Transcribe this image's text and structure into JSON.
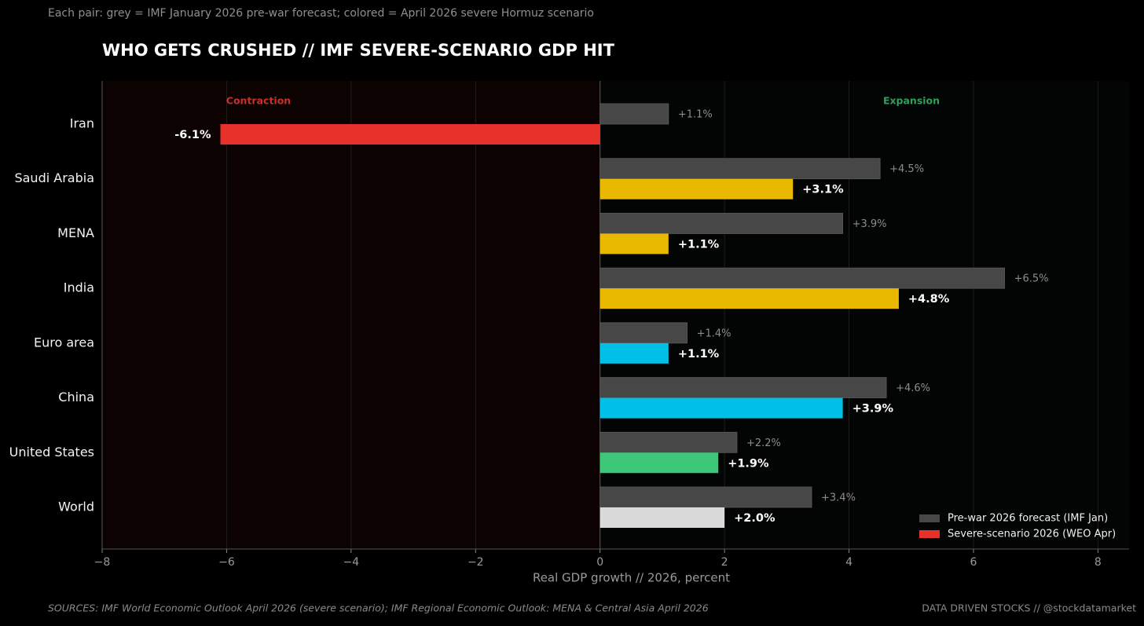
{
  "chart_data": {
    "type": "hbar",
    "subtitle": "Each pair: grey = IMF January 2026 pre-war forecast;  colored = April 2026 severe Hormuz scenario",
    "title": "WHO GETS CRUSHED  //  IMF SEVERE-SCENARIO GDP HIT",
    "x_label": "Real GDP growth  //  2026, percent",
    "annotations": [
      "Contraction",
      "Expansion"
    ],
    "source": "SOURCES: IMF World Economic Outlook April 2026 (severe scenario);  IMF Regional Economic Outlook: MENA & Central Asia April 2026",
    "credit": "DATA DRIVEN STOCKS  //  @stockdatamarket",
    "categories": [
      "Iran",
      "Saudi Arabia",
      "MENA",
      "India",
      "Euro area",
      "China",
      "United States",
      "World"
    ],
    "series": [
      {
        "name": "Pre-war 2026 forecast (IMF Jan)",
        "color": "#474747",
        "values": [
          1.1,
          4.5,
          3.9,
          6.5,
          1.4,
          4.6,
          2.2,
          3.4
        ],
        "value_labels": [
          "+1.1%",
          "+4.5%",
          "+3.9%",
          "+6.5%",
          "+1.4%",
          "+4.6%",
          "+2.2%",
          "+3.4%"
        ]
      },
      {
        "name": "Severe-scenario 2026 (WEO Apr)",
        "color": "#e8312a",
        "colors": [
          "#e8312a",
          "#e9b902",
          "#e9b902",
          "#e9b902",
          "#00c0e8",
          "#00c0e8",
          "#3cc878",
          "#dadada"
        ],
        "values": [
          -6.1,
          3.1,
          1.1,
          4.8,
          1.1,
          3.9,
          1.9,
          2.0
        ],
        "value_labels": [
          "-6.1%",
          "+3.1%",
          "+1.1%",
          "+4.8%",
          "+1.1%",
          "+3.9%",
          "+1.9%",
          "+2.0%"
        ]
      }
    ],
    "xlim": [
      -8,
      8.5
    ],
    "xticks": [
      {
        "value": -8,
        "label": "−8"
      },
      {
        "value": -6,
        "label": "−6"
      },
      {
        "value": -4,
        "label": "−4"
      },
      {
        "value": -2,
        "label": "−2"
      },
      0,
      2,
      4,
      6,
      8
    ],
    "grid": true,
    "legend": "lower right"
  }
}
